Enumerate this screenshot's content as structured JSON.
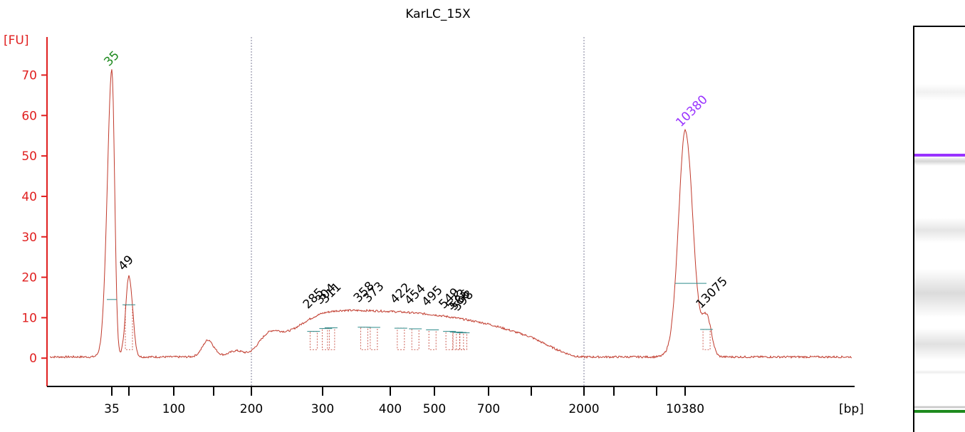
{
  "chart_data": {
    "type": "line",
    "title": "KarLC_15X",
    "ylabel": "[FU]",
    "xlabel": "[bp]",
    "ylim": [
      -7,
      78
    ],
    "yticks": [
      0,
      10,
      20,
      30,
      40,
      50,
      60,
      70
    ],
    "x_scale": "bioanalyzer-ladder",
    "xtick_labels": [
      "35",
      "100",
      "200",
      "300",
      "400",
      "500",
      "700",
      "2000",
      "10380"
    ],
    "markers": {
      "lower": {
        "label": "35",
        "color": "#1e8a1e"
      },
      "upper": {
        "label": "10380",
        "color": "#9933ff"
      }
    },
    "peak_labels": [
      "49",
      "285",
      "304",
      "311",
      "358",
      "373",
      "422",
      "454",
      "495",
      "549",
      "573",
      "586",
      "598",
      "13075"
    ],
    "region_lines_bp": [
      200,
      2000
    ],
    "trace": {
      "color": "#c0392b",
      "baseline_fu": 0.3,
      "peaks": [
        {
          "bp": 35,
          "fu": 71,
          "width_bp": 2
        },
        {
          "bp": 49,
          "fu": 20,
          "width_bp": 3
        },
        {
          "bp": 142,
          "fu": 4.2,
          "width_bp": 8
        },
        {
          "bp": 178,
          "fu": 1.5,
          "width_bp": 10
        },
        {
          "bp": 220,
          "fu": 4.0,
          "width_bp": 14
        },
        {
          "bp": 10380,
          "fu": 56,
          "width_bp": 900
        },
        {
          "bp": 13075,
          "fu": 10,
          "width_bp": 700
        }
      ],
      "smear": {
        "start_bp": 200,
        "peak_bp": 330,
        "end_bp": 1900,
        "fu": 11.5
      }
    }
  },
  "colors": {
    "axis": "#e02020",
    "trace": "#c0392b",
    "region_line": "#7f7f9a",
    "lower_marker": "#1e8a1e",
    "upper_marker": "#9933ff",
    "peak_fill_line": "#2e8b8b"
  },
  "gel": {
    "bands": [
      {
        "at": 0.16,
        "intensity": 0.12,
        "spread": 0.02
      },
      {
        "at": 0.315,
        "intensity": 1.0,
        "spread": 0.006,
        "color": "#9933ff"
      },
      {
        "at": 0.33,
        "intensity": 0.35,
        "spread": 0.012
      },
      {
        "at": 0.5,
        "intensity": 0.22,
        "spread": 0.03
      },
      {
        "at": 0.655,
        "intensity": 0.3,
        "spread": 0.06
      },
      {
        "at": 0.78,
        "intensity": 0.25,
        "spread": 0.04
      },
      {
        "at": 0.85,
        "intensity": 0.15,
        "spread": 0.005
      },
      {
        "at": 0.935,
        "intensity": 0.6,
        "spread": 0.004
      },
      {
        "at": 0.945,
        "intensity": 1.0,
        "spread": 0.006,
        "color": "#1e8a1e"
      }
    ]
  }
}
